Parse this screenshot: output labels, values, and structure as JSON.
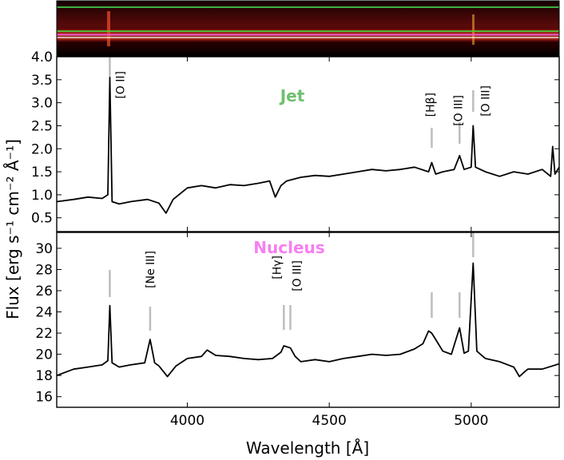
{
  "figure": {
    "xlabel": "Wavelength [Å]",
    "ylabel": "Flux [erg s⁻¹ cm⁻² Å⁻¹]",
    "xticks": [
      "4000",
      "4500",
      "5000"
    ]
  },
  "chart_data": [
    {
      "type": "image",
      "panel": "2D spectrum",
      "trace_colors": [
        "#3cb043",
        "#4cd137",
        "#f25ad2",
        "#ffffff"
      ],
      "background_color": "#3a0505"
    },
    {
      "type": "line",
      "panel": "Jet",
      "title": "Jet",
      "title_color": "#6fbf6f",
      "xlim": [
        3540,
        5310
      ],
      "ylim": [
        0.2,
        4.0
      ],
      "yticks": [
        "0.5",
        "1.0",
        "1.5",
        "2.0",
        "2.5",
        "3.0",
        "3.5",
        "4.0"
      ],
      "series": [
        {
          "name": "Jet spectrum",
          "color": "#000000",
          "x": [
            3540,
            3600,
            3650,
            3700,
            3720,
            3727,
            3735,
            3760,
            3800,
            3860,
            3900,
            3925,
            3950,
            4000,
            4050,
            4100,
            4150,
            4200,
            4250,
            4290,
            4310,
            4330,
            4350,
            4400,
            4450,
            4500,
            4550,
            4600,
            4650,
            4700,
            4750,
            4800,
            4850,
            4861,
            4875,
            4900,
            4940,
            4959,
            4975,
            5000,
            5007,
            5015,
            5050,
            5100,
            5150,
            5200,
            5250,
            5280,
            5287,
            5295,
            5310
          ],
          "y": [
            0.85,
            0.9,
            0.95,
            0.92,
            1.0,
            3.55,
            0.85,
            0.8,
            0.85,
            0.9,
            0.82,
            0.6,
            0.9,
            1.15,
            1.2,
            1.15,
            1.22,
            1.2,
            1.25,
            1.3,
            0.95,
            1.2,
            1.3,
            1.38,
            1.42,
            1.4,
            1.45,
            1.5,
            1.55,
            1.52,
            1.55,
            1.6,
            1.5,
            1.7,
            1.45,
            1.5,
            1.55,
            1.85,
            1.55,
            1.6,
            2.5,
            1.6,
            1.5,
            1.4,
            1.5,
            1.45,
            1.55,
            1.4,
            2.05,
            1.45,
            1.6
          ]
        }
      ],
      "annotations": [
        {
          "label": "[O II]",
          "x": 3727
        },
        {
          "label": "[Hβ]",
          "x": 4861
        },
        {
          "label": "[O III]",
          "x": 4959
        },
        {
          "label": "[O III]",
          "x": 5007
        }
      ]
    },
    {
      "type": "line",
      "panel": "Nucleus",
      "title": "Nucleus",
      "title_color": "#f77ff0",
      "xlim": [
        3540,
        5310
      ],
      "ylim": [
        15,
        31.5
      ],
      "yticks": [
        "16",
        "18",
        "20",
        "22",
        "24",
        "26",
        "28",
        "30"
      ],
      "series": [
        {
          "name": "Nucleus spectrum",
          "color": "#000000",
          "x": [
            3540,
            3600,
            3650,
            3700,
            3720,
            3727,
            3735,
            3760,
            3800,
            3850,
            3869,
            3885,
            3900,
            3930,
            3960,
            4000,
            4050,
            4070,
            4100,
            4150,
            4200,
            4250,
            4300,
            4330,
            4340,
            4363,
            4380,
            4400,
            4450,
            4500,
            4550,
            4600,
            4650,
            4700,
            4750,
            4800,
            4830,
            4850,
            4861,
            4875,
            4900,
            4930,
            4959,
            4975,
            4990,
            5007,
            5020,
            5050,
            5100,
            5150,
            5170,
            5190,
            5200,
            5250,
            5310
          ],
          "y": [
            18.0,
            18.6,
            18.8,
            19.0,
            19.4,
            24.6,
            19.2,
            18.8,
            19.0,
            19.2,
            21.4,
            19.2,
            18.9,
            17.9,
            18.9,
            19.6,
            19.8,
            20.4,
            19.9,
            19.8,
            19.6,
            19.5,
            19.6,
            20.2,
            20.8,
            20.6,
            19.8,
            19.3,
            19.5,
            19.3,
            19.6,
            19.8,
            20.0,
            19.9,
            20.0,
            20.5,
            21.0,
            22.2,
            22.0,
            21.4,
            20.3,
            20.0,
            22.5,
            20.1,
            20.3,
            28.6,
            20.3,
            19.6,
            19.3,
            18.8,
            17.9,
            18.4,
            18.6,
            18.6,
            19.1
          ]
        }
      ],
      "annotations": [
        {
          "label": "[Ne III]",
          "x": 3869
        },
        {
          "label": "[Hγ]",
          "x": 4340
        },
        {
          "label": "[O III]",
          "x": 4363
        }
      ]
    }
  ]
}
